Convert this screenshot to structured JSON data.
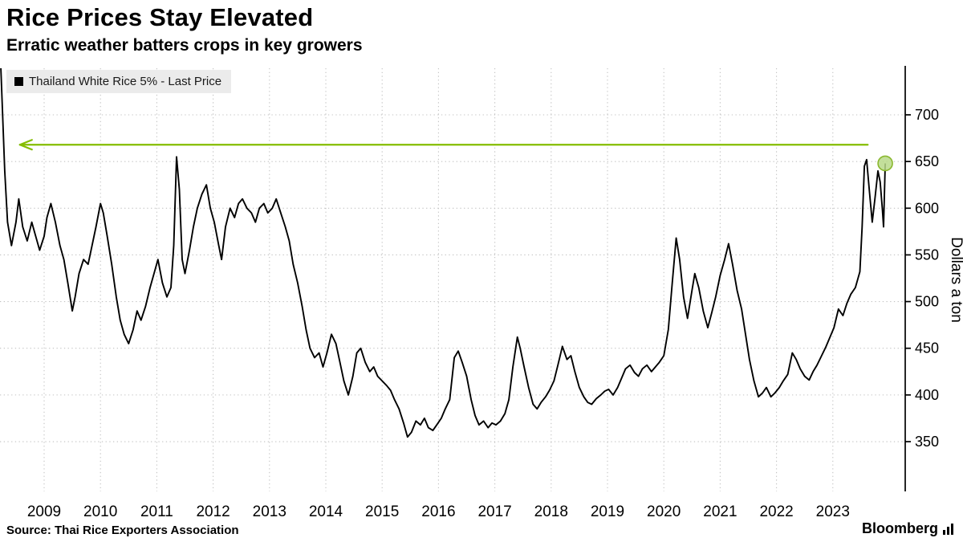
{
  "header": {
    "title": "Rice Prices Stay Elevated",
    "subtitle": "Erratic weather batters crops in key growers"
  },
  "legend": {
    "label": "Thailand White Rice 5% - Last Price",
    "swatch_color": "#000000"
  },
  "footer": {
    "source": "Source: Thai Rice Exporters Association",
    "brand": "Bloomberg"
  },
  "chart_data": {
    "type": "line",
    "title": "Rice Prices Stay Elevated",
    "subtitle": "Erratic weather batters crops in key growers",
    "ylabel": "Dollars a ton",
    "xlabel": "",
    "grid": true,
    "legend_position": "top-left",
    "ylim": [
      330,
      760
    ],
    "xlim": [
      2008.2,
      2024.3
    ],
    "y_ticks": [
      350,
      400,
      450,
      500,
      550,
      600,
      650,
      700
    ],
    "x_ticks": [
      2009,
      2010,
      2011,
      2012,
      2013,
      2014,
      2015,
      2016,
      2017,
      2018,
      2019,
      2020,
      2021,
      2022,
      2023
    ],
    "series": [
      {
        "name": "Thailand White Rice 5% - Last Price",
        "color": "#000000",
        "points": [
          [
            2008.22,
            770
          ],
          [
            2008.3,
            640
          ],
          [
            2008.35,
            585
          ],
          [
            2008.42,
            560
          ],
          [
            2008.5,
            585
          ],
          [
            2008.55,
            610
          ],
          [
            2008.62,
            580
          ],
          [
            2008.7,
            565
          ],
          [
            2008.78,
            585
          ],
          [
            2008.85,
            570
          ],
          [
            2008.92,
            555
          ],
          [
            2009.0,
            570
          ],
          [
            2009.05,
            590
          ],
          [
            2009.12,
            605
          ],
          [
            2009.2,
            585
          ],
          [
            2009.28,
            560
          ],
          [
            2009.35,
            545
          ],
          [
            2009.42,
            520
          ],
          [
            2009.5,
            490
          ],
          [
            2009.55,
            505
          ],
          [
            2009.62,
            530
          ],
          [
            2009.7,
            545
          ],
          [
            2009.78,
            540
          ],
          [
            2009.85,
            560
          ],
          [
            2009.92,
            580
          ],
          [
            2010.0,
            605
          ],
          [
            2010.05,
            595
          ],
          [
            2010.12,
            570
          ],
          [
            2010.2,
            540
          ],
          [
            2010.28,
            505
          ],
          [
            2010.35,
            480
          ],
          [
            2010.42,
            465
          ],
          [
            2010.5,
            455
          ],
          [
            2010.58,
            470
          ],
          [
            2010.65,
            490
          ],
          [
            2010.72,
            480
          ],
          [
            2010.8,
            495
          ],
          [
            2010.88,
            515
          ],
          [
            2010.95,
            530
          ],
          [
            2011.02,
            545
          ],
          [
            2011.1,
            520
          ],
          [
            2011.18,
            505
          ],
          [
            2011.25,
            515
          ],
          [
            2011.3,
            560
          ],
          [
            2011.35,
            655
          ],
          [
            2011.4,
            620
          ],
          [
            2011.45,
            545
          ],
          [
            2011.5,
            530
          ],
          [
            2011.58,
            555
          ],
          [
            2011.65,
            580
          ],
          [
            2011.72,
            600
          ],
          [
            2011.8,
            615
          ],
          [
            2011.88,
            625
          ],
          [
            2011.95,
            600
          ],
          [
            2012.02,
            585
          ],
          [
            2012.1,
            560
          ],
          [
            2012.15,
            545
          ],
          [
            2012.22,
            580
          ],
          [
            2012.3,
            600
          ],
          [
            2012.38,
            590
          ],
          [
            2012.45,
            605
          ],
          [
            2012.52,
            610
          ],
          [
            2012.6,
            600
          ],
          [
            2012.68,
            595
          ],
          [
            2012.75,
            585
          ],
          [
            2012.82,
            600
          ],
          [
            2012.9,
            605
          ],
          [
            2012.97,
            595
          ],
          [
            2013.05,
            600
          ],
          [
            2013.12,
            610
          ],
          [
            2013.2,
            595
          ],
          [
            2013.28,
            580
          ],
          [
            2013.35,
            565
          ],
          [
            2013.42,
            540
          ],
          [
            2013.5,
            520
          ],
          [
            2013.58,
            495
          ],
          [
            2013.65,
            470
          ],
          [
            2013.72,
            450
          ],
          [
            2013.8,
            440
          ],
          [
            2013.88,
            445
          ],
          [
            2013.95,
            430
          ],
          [
            2014.02,
            445
          ],
          [
            2014.1,
            465
          ],
          [
            2014.18,
            455
          ],
          [
            2014.25,
            435
          ],
          [
            2014.32,
            415
          ],
          [
            2014.4,
            400
          ],
          [
            2014.48,
            420
          ],
          [
            2014.55,
            445
          ],
          [
            2014.62,
            450
          ],
          [
            2014.7,
            435
          ],
          [
            2014.78,
            425
          ],
          [
            2014.85,
            430
          ],
          [
            2014.92,
            420
          ],
          [
            2015.0,
            415
          ],
          [
            2015.08,
            410
          ],
          [
            2015.15,
            405
          ],
          [
            2015.22,
            395
          ],
          [
            2015.3,
            385
          ],
          [
            2015.38,
            370
          ],
          [
            2015.45,
            355
          ],
          [
            2015.52,
            360
          ],
          [
            2015.6,
            372
          ],
          [
            2015.68,
            368
          ],
          [
            2015.75,
            375
          ],
          [
            2015.82,
            365
          ],
          [
            2015.9,
            362
          ],
          [
            2015.97,
            368
          ],
          [
            2016.05,
            375
          ],
          [
            2016.12,
            385
          ],
          [
            2016.2,
            395
          ],
          [
            2016.28,
            440
          ],
          [
            2016.35,
            447
          ],
          [
            2016.42,
            435
          ],
          [
            2016.5,
            420
          ],
          [
            2016.58,
            395
          ],
          [
            2016.65,
            378
          ],
          [
            2016.72,
            368
          ],
          [
            2016.8,
            372
          ],
          [
            2016.88,
            365
          ],
          [
            2016.95,
            370
          ],
          [
            2017.02,
            368
          ],
          [
            2017.1,
            372
          ],
          [
            2017.18,
            380
          ],
          [
            2017.25,
            395
          ],
          [
            2017.32,
            430
          ],
          [
            2017.4,
            462
          ],
          [
            2017.45,
            450
          ],
          [
            2017.52,
            430
          ],
          [
            2017.6,
            408
          ],
          [
            2017.68,
            390
          ],
          [
            2017.75,
            385
          ],
          [
            2017.82,
            392
          ],
          [
            2017.9,
            398
          ],
          [
            2017.97,
            405
          ],
          [
            2018.05,
            415
          ],
          [
            2018.12,
            432
          ],
          [
            2018.2,
            452
          ],
          [
            2018.28,
            438
          ],
          [
            2018.35,
            442
          ],
          [
            2018.42,
            425
          ],
          [
            2018.5,
            408
          ],
          [
            2018.58,
            398
          ],
          [
            2018.65,
            392
          ],
          [
            2018.72,
            390
          ],
          [
            2018.8,
            396
          ],
          [
            2018.88,
            400
          ],
          [
            2018.95,
            404
          ],
          [
            2019.02,
            406
          ],
          [
            2019.1,
            400
          ],
          [
            2019.18,
            408
          ],
          [
            2019.25,
            418
          ],
          [
            2019.32,
            428
          ],
          [
            2019.4,
            432
          ],
          [
            2019.48,
            424
          ],
          [
            2019.55,
            420
          ],
          [
            2019.62,
            428
          ],
          [
            2019.7,
            432
          ],
          [
            2019.78,
            425
          ],
          [
            2019.85,
            430
          ],
          [
            2019.92,
            435
          ],
          [
            2020.0,
            442
          ],
          [
            2020.08,
            470
          ],
          [
            2020.15,
            520
          ],
          [
            2020.22,
            568
          ],
          [
            2020.28,
            545
          ],
          [
            2020.35,
            505
          ],
          [
            2020.42,
            482
          ],
          [
            2020.5,
            512
          ],
          [
            2020.55,
            530
          ],
          [
            2020.62,
            515
          ],
          [
            2020.7,
            490
          ],
          [
            2020.78,
            472
          ],
          [
            2020.85,
            488
          ],
          [
            2020.92,
            505
          ],
          [
            2021.0,
            528
          ],
          [
            2021.08,
            545
          ],
          [
            2021.15,
            562
          ],
          [
            2021.22,
            540
          ],
          [
            2021.3,
            512
          ],
          [
            2021.38,
            492
          ],
          [
            2021.45,
            465
          ],
          [
            2021.52,
            438
          ],
          [
            2021.6,
            415
          ],
          [
            2021.68,
            398
          ],
          [
            2021.75,
            402
          ],
          [
            2021.82,
            408
          ],
          [
            2021.9,
            398
          ],
          [
            2021.97,
            402
          ],
          [
            2022.05,
            408
          ],
          [
            2022.12,
            415
          ],
          [
            2022.2,
            422
          ],
          [
            2022.28,
            445
          ],
          [
            2022.35,
            438
          ],
          [
            2022.42,
            428
          ],
          [
            2022.5,
            420
          ],
          [
            2022.58,
            416
          ],
          [
            2022.65,
            425
          ],
          [
            2022.72,
            432
          ],
          [
            2022.8,
            442
          ],
          [
            2022.88,
            452
          ],
          [
            2022.95,
            462
          ],
          [
            2023.02,
            472
          ],
          [
            2023.1,
            492
          ],
          [
            2023.18,
            485
          ],
          [
            2023.25,
            498
          ],
          [
            2023.32,
            508
          ],
          [
            2023.4,
            515
          ],
          [
            2023.48,
            532
          ],
          [
            2023.52,
            580
          ],
          [
            2023.56,
            645
          ],
          [
            2023.6,
            652
          ],
          [
            2023.65,
            618
          ],
          [
            2023.7,
            585
          ],
          [
            2023.75,
            612
          ],
          [
            2023.8,
            640
          ],
          [
            2023.84,
            628
          ],
          [
            2023.88,
            598
          ],
          [
            2023.9,
            580
          ],
          [
            2023.93,
            648
          ]
        ]
      }
    ],
    "annotations": {
      "arrow": {
        "kind": "horizontal-arrow",
        "y": 668,
        "x_tip": 2008.57,
        "x_tail": 2023.62,
        "color": "#84bd00"
      },
      "marker": {
        "kind": "last-price-dot",
        "x": 2023.93,
        "y": 648,
        "r": 9,
        "fill": "#b9d989",
        "stroke": "#8ab82e",
        "opacity": 0.85
      }
    },
    "colors": {
      "grid": "#c2c2c2",
      "axis": "#000000",
      "text": "#000000"
    }
  }
}
